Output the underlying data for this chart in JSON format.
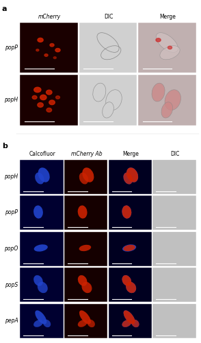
{
  "fig_width": 2.94,
  "fig_height": 5.0,
  "dpi": 100,
  "background": "#ffffff",
  "panel_a_label": "a",
  "panel_b_label": "b",
  "section_a": {
    "col_headers": [
      "mCherry",
      "DIC",
      "Merge"
    ],
    "col_headers_italic": [
      true,
      false,
      false
    ],
    "rows": [
      "popP",
      "popH"
    ],
    "mcherry_red_bright": "#cc2200",
    "merge_red_tint": "#d08080"
  },
  "section_b": {
    "col_headers": [
      "Calcofluor",
      "mCherry Ab",
      "Merge",
      "DIC"
    ],
    "col_headers_italic": [
      false,
      true,
      false,
      false
    ],
    "rows": [
      "popH",
      "popP",
      "popO",
      "popS",
      "pepA"
    ]
  },
  "scale_bar_color": "#ffffff",
  "row_label_color": "#000000",
  "header_color": "#000000",
  "font_size_header": 5.5,
  "font_size_row_label": 5.5,
  "font_size_panel_label": 8
}
